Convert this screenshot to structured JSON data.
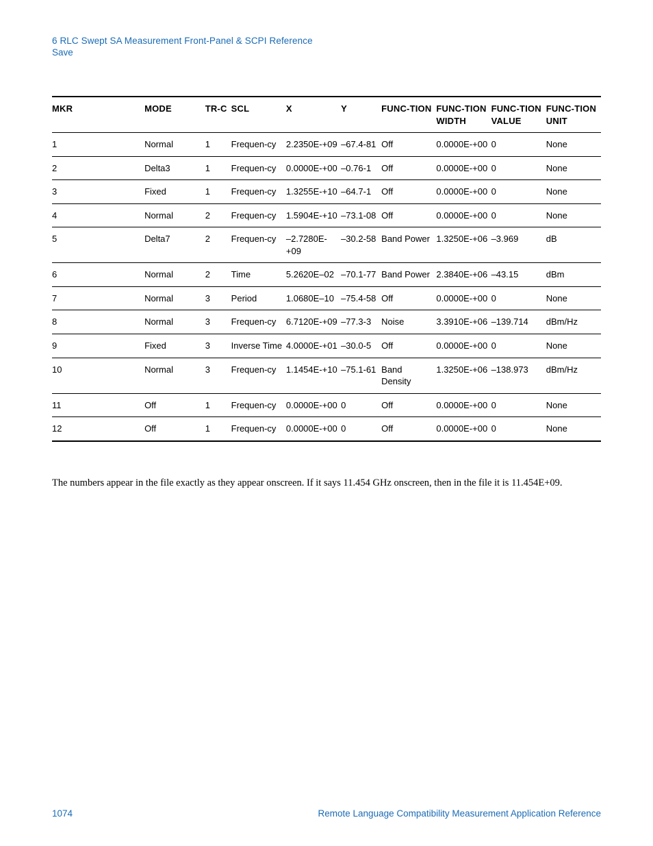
{
  "header": {
    "line1": "6  RLC Swept SA Measurement Front-Panel & SCPI Reference",
    "line2": "Save"
  },
  "table": {
    "col_widths_pct": [
      16,
      10.5,
      4.5,
      9.5,
      9.5,
      7,
      9.5,
      9.5,
      9.5,
      9.5
    ],
    "columns": [
      "MKR",
      "MODE",
      "TR-C",
      "SCL",
      "X",
      "Y",
      "FUNC-TION",
      "FUNC-TION WIDTH",
      "FUNC-TION VALUE",
      "FUNC-TION UNIT"
    ],
    "rows": [
      [
        "1",
        "Normal",
        "1",
        "Frequen-cy",
        "2.2350E-+09",
        "–67.4-81",
        "Off",
        "0.0000E-+00",
        "0",
        "None"
      ],
      [
        "2",
        "Delta3",
        "1",
        "Frequen-cy",
        "0.0000E-+00",
        "–0.76-1",
        "Off",
        "0.0000E-+00",
        "0",
        "None"
      ],
      [
        "3",
        "Fixed",
        "1",
        "Frequen-cy",
        "1.3255E-+10",
        "–64.7-1",
        "Off",
        "0.0000E-+00",
        "0",
        "None"
      ],
      [
        "4",
        "Normal",
        "2",
        "Frequen-cy",
        "1.5904E-+10",
        "–73.1-08",
        "Off",
        "0.0000E-+00",
        "0",
        "None"
      ],
      [
        "5",
        "Delta7",
        "2",
        "Frequen-cy",
        "–2.7280E-+09",
        "–30.2-58",
        "Band Power",
        "1.3250E-+06",
        "–3.969",
        "dB"
      ],
      [
        "6",
        "Normal",
        "2",
        "Time",
        "5.2620E–02",
        "–70.1-77",
        "Band Power",
        "2.3840E-+06",
        "–43.15",
        "dBm"
      ],
      [
        "7",
        "Normal",
        "3",
        "Period",
        "1.0680E–10",
        "–75.4-58",
        "Off",
        "0.0000E-+00",
        "0",
        "None"
      ],
      [
        "8",
        "Normal",
        "3",
        "Frequen-cy",
        "6.7120E-+09",
        "–77.3-3",
        "Noise",
        "3.3910E-+06",
        "–139.714",
        "dBm/Hz"
      ],
      [
        "9",
        "Fixed",
        "3",
        "Inverse Time",
        "4.0000E-+01",
        "–30.0-5",
        "Off",
        "0.0000E-+00",
        "0",
        "None"
      ],
      [
        "10",
        "Normal",
        "3",
        "Frequen-cy",
        "1.1454E-+10",
        "–75.1-61",
        "Band Density",
        "1.3250E-+06",
        "–138.973",
        "dBm/Hz"
      ],
      [
        "11",
        "Off",
        "1",
        "Frequen-cy",
        "0.0000E-+00",
        "0",
        "Off",
        "0.0000E-+00",
        "0",
        "None"
      ],
      [
        "12",
        "Off",
        "1",
        "Frequen-cy",
        "0.0000E-+00",
        "0",
        "Off",
        "0.0000E-+00",
        "0",
        "None"
      ]
    ],
    "header_fontsize": 13,
    "cell_fontsize": 13,
    "border_color": "#000000",
    "background_color": "#ffffff"
  },
  "paragraph": "The numbers appear in the file exactly as they appear onscreen.  If it says 11.454 GHz onscreen, then in the file it is 11.454E+09.",
  "footer": {
    "page": "1074",
    "title": "Remote Language Compatibility Measurement Application Reference",
    "color": "#1a6bb5"
  }
}
